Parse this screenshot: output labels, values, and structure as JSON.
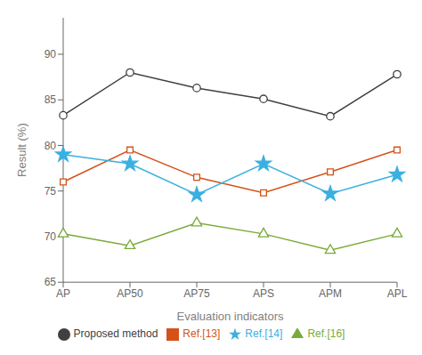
{
  "chart_data": {
    "type": "line",
    "categories": [
      "AP",
      "AP50",
      "AP75",
      "APS",
      "APM",
      "APL"
    ],
    "series": [
      {
        "name": "Proposed method",
        "color": "#404040",
        "marker": "circle",
        "values": [
          83.3,
          88.0,
          86.3,
          85.1,
          83.2,
          87.8
        ]
      },
      {
        "name": "Ref.[13]",
        "color": "#d4521a",
        "marker": "square",
        "values": [
          76.0,
          79.5,
          76.5,
          74.8,
          77.1,
          79.5
        ]
      },
      {
        "name": "Ref.[14]",
        "color": "#3ab0e0",
        "marker": "star",
        "values": [
          79.0,
          78.0,
          74.6,
          78.0,
          74.7,
          76.8
        ]
      },
      {
        "name": "Ref.[16]",
        "color": "#7aaa3a",
        "marker": "triangle",
        "values": [
          70.3,
          69.0,
          71.5,
          70.3,
          68.5,
          70.3
        ]
      }
    ],
    "xlabel": "Evaluation indicators",
    "ylabel": "Result (%)",
    "ylim": [
      65,
      94
    ],
    "yticks": [
      65,
      70,
      75,
      80,
      85,
      90
    ],
    "grid": false,
    "legend": "bottom"
  }
}
